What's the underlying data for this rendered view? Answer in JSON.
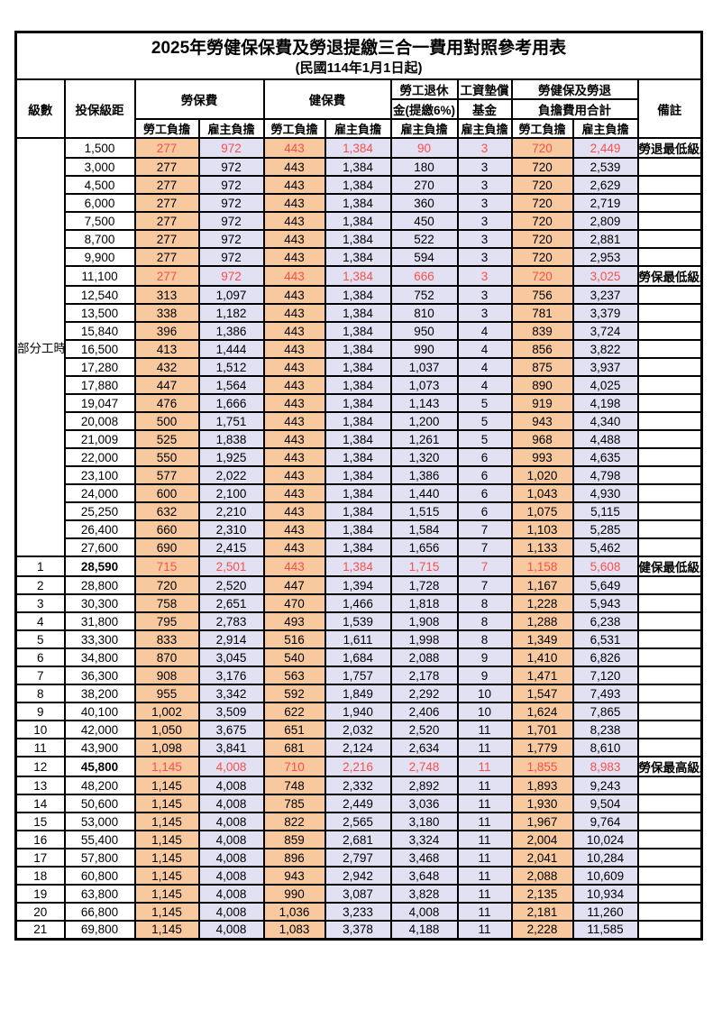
{
  "title": "2025年勞健保保費及勞退提繳三合一費用對照參考用表",
  "subtitle": "(民國114年1月1日起)",
  "colors": {
    "employee_bg": "#F8C99F",
    "employer_bg": "#E2E0F3",
    "highlight_red": "#FF4F4A",
    "border": "#000000"
  },
  "header": {
    "level": "級數",
    "bracket": "投保級距",
    "labor_ins": "勞保費",
    "health_ins": "健保費",
    "pension_line1": "勞工退休",
    "pension_line2": "金(提繳6%)",
    "fund_line1": "工資墊償",
    "fund_line2": "基金",
    "total_line1": "勞健保及勞退",
    "total_line2": "負擔費用合計",
    "note": "備註",
    "employee": "勞工負擔",
    "employer": "雇主負擔"
  },
  "part_time_label": "部分工時",
  "part_time_row_span": 23,
  "rows": [
    {
      "level": "",
      "bracket": "1,500",
      "labor_e": "277",
      "labor_r": "972",
      "health_e": "443",
      "health_r": "1,384",
      "pension": "90",
      "fund": "3",
      "sum_e": "720",
      "sum_r": "2,449",
      "note": "勞退最低級距",
      "red": true,
      "bold": false
    },
    {
      "level": "",
      "bracket": "3,000",
      "labor_e": "277",
      "labor_r": "972",
      "health_e": "443",
      "health_r": "1,384",
      "pension": "180",
      "fund": "3",
      "sum_e": "720",
      "sum_r": "2,539",
      "note": "",
      "red": false,
      "bold": false
    },
    {
      "level": "",
      "bracket": "4,500",
      "labor_e": "277",
      "labor_r": "972",
      "health_e": "443",
      "health_r": "1,384",
      "pension": "270",
      "fund": "3",
      "sum_e": "720",
      "sum_r": "2,629",
      "note": "",
      "red": false,
      "bold": false
    },
    {
      "level": "",
      "bracket": "6,000",
      "labor_e": "277",
      "labor_r": "972",
      "health_e": "443",
      "health_r": "1,384",
      "pension": "360",
      "fund": "3",
      "sum_e": "720",
      "sum_r": "2,719",
      "note": "",
      "red": false,
      "bold": false
    },
    {
      "level": "",
      "bracket": "7,500",
      "labor_e": "277",
      "labor_r": "972",
      "health_e": "443",
      "health_r": "1,384",
      "pension": "450",
      "fund": "3",
      "sum_e": "720",
      "sum_r": "2,809",
      "note": "",
      "red": false,
      "bold": false
    },
    {
      "level": "",
      "bracket": "8,700",
      "labor_e": "277",
      "labor_r": "972",
      "health_e": "443",
      "health_r": "1,384",
      "pension": "522",
      "fund": "3",
      "sum_e": "720",
      "sum_r": "2,881",
      "note": "",
      "red": false,
      "bold": false
    },
    {
      "level": "",
      "bracket": "9,900",
      "labor_e": "277",
      "labor_r": "972",
      "health_e": "443",
      "health_r": "1,384",
      "pension": "594",
      "fund": "3",
      "sum_e": "720",
      "sum_r": "2,953",
      "note": "",
      "red": false,
      "bold": false
    },
    {
      "level": "",
      "bracket": "11,100",
      "labor_e": "277",
      "labor_r": "972",
      "health_e": "443",
      "health_r": "1,384",
      "pension": "666",
      "fund": "3",
      "sum_e": "720",
      "sum_r": "3,025",
      "note": "勞保最低級距",
      "red": true,
      "bold": false
    },
    {
      "level": "",
      "bracket": "12,540",
      "labor_e": "313",
      "labor_r": "1,097",
      "health_e": "443",
      "health_r": "1,384",
      "pension": "752",
      "fund": "3",
      "sum_e": "756",
      "sum_r": "3,237",
      "note": "",
      "red": false,
      "bold": false
    },
    {
      "level": "",
      "bracket": "13,500",
      "labor_e": "338",
      "labor_r": "1,182",
      "health_e": "443",
      "health_r": "1,384",
      "pension": "810",
      "fund": "3",
      "sum_e": "781",
      "sum_r": "3,379",
      "note": "",
      "red": false,
      "bold": false
    },
    {
      "level": "",
      "bracket": "15,840",
      "labor_e": "396",
      "labor_r": "1,386",
      "health_e": "443",
      "health_r": "1,384",
      "pension": "950",
      "fund": "4",
      "sum_e": "839",
      "sum_r": "3,724",
      "note": "",
      "red": false,
      "bold": false
    },
    {
      "level": "",
      "bracket": "16,500",
      "labor_e": "413",
      "labor_r": "1,444",
      "health_e": "443",
      "health_r": "1,384",
      "pension": "990",
      "fund": "4",
      "sum_e": "856",
      "sum_r": "3,822",
      "note": "",
      "red": false,
      "bold": false
    },
    {
      "level": "",
      "bracket": "17,280",
      "labor_e": "432",
      "labor_r": "1,512",
      "health_e": "443",
      "health_r": "1,384",
      "pension": "1,037",
      "fund": "4",
      "sum_e": "875",
      "sum_r": "3,937",
      "note": "",
      "red": false,
      "bold": false
    },
    {
      "level": "",
      "bracket": "17,880",
      "labor_e": "447",
      "labor_r": "1,564",
      "health_e": "443",
      "health_r": "1,384",
      "pension": "1,073",
      "fund": "4",
      "sum_e": "890",
      "sum_r": "4,025",
      "note": "",
      "red": false,
      "bold": false
    },
    {
      "level": "",
      "bracket": "19,047",
      "labor_e": "476",
      "labor_r": "1,666",
      "health_e": "443",
      "health_r": "1,384",
      "pension": "1,143",
      "fund": "5",
      "sum_e": "919",
      "sum_r": "4,198",
      "note": "",
      "red": false,
      "bold": false
    },
    {
      "level": "",
      "bracket": "20,008",
      "labor_e": "500",
      "labor_r": "1,751",
      "health_e": "443",
      "health_r": "1,384",
      "pension": "1,200",
      "fund": "5",
      "sum_e": "943",
      "sum_r": "4,340",
      "note": "",
      "red": false,
      "bold": false
    },
    {
      "level": "",
      "bracket": "21,009",
      "labor_e": "525",
      "labor_r": "1,838",
      "health_e": "443",
      "health_r": "1,384",
      "pension": "1,261",
      "fund": "5",
      "sum_e": "968",
      "sum_r": "4,488",
      "note": "",
      "red": false,
      "bold": false
    },
    {
      "level": "",
      "bracket": "22,000",
      "labor_e": "550",
      "labor_r": "1,925",
      "health_e": "443",
      "health_r": "1,384",
      "pension": "1,320",
      "fund": "6",
      "sum_e": "993",
      "sum_r": "4,635",
      "note": "",
      "red": false,
      "bold": false
    },
    {
      "level": "",
      "bracket": "23,100",
      "labor_e": "577",
      "labor_r": "2,022",
      "health_e": "443",
      "health_r": "1,384",
      "pension": "1,386",
      "fund": "6",
      "sum_e": "1,020",
      "sum_r": "4,798",
      "note": "",
      "red": false,
      "bold": false
    },
    {
      "level": "",
      "bracket": "24,000",
      "labor_e": "600",
      "labor_r": "2,100",
      "health_e": "443",
      "health_r": "1,384",
      "pension": "1,440",
      "fund": "6",
      "sum_e": "1,043",
      "sum_r": "4,930",
      "note": "",
      "red": false,
      "bold": false
    },
    {
      "level": "",
      "bracket": "25,250",
      "labor_e": "632",
      "labor_r": "2,210",
      "health_e": "443",
      "health_r": "1,384",
      "pension": "1,515",
      "fund": "6",
      "sum_e": "1,075",
      "sum_r": "5,115",
      "note": "",
      "red": false,
      "bold": false
    },
    {
      "level": "",
      "bracket": "26,400",
      "labor_e": "660",
      "labor_r": "2,310",
      "health_e": "443",
      "health_r": "1,384",
      "pension": "1,584",
      "fund": "7",
      "sum_e": "1,103",
      "sum_r": "5,285",
      "note": "",
      "red": false,
      "bold": false
    },
    {
      "level": "",
      "bracket": "27,600",
      "labor_e": "690",
      "labor_r": "2,415",
      "health_e": "443",
      "health_r": "1,384",
      "pension": "1,656",
      "fund": "7",
      "sum_e": "1,133",
      "sum_r": "5,462",
      "note": "",
      "red": false,
      "bold": false
    },
    {
      "level": "1",
      "bracket": "28,590",
      "labor_e": "715",
      "labor_r": "2,501",
      "health_e": "443",
      "health_r": "1,384",
      "pension": "1,715",
      "fund": "7",
      "sum_e": "1,158",
      "sum_r": "5,608",
      "note": "健保最低級距",
      "red": true,
      "bold": true
    },
    {
      "level": "2",
      "bracket": "28,800",
      "labor_e": "720",
      "labor_r": "2,520",
      "health_e": "447",
      "health_r": "1,394",
      "pension": "1,728",
      "fund": "7",
      "sum_e": "1,167",
      "sum_r": "5,649",
      "note": "",
      "red": false,
      "bold": false
    },
    {
      "level": "3",
      "bracket": "30,300",
      "labor_e": "758",
      "labor_r": "2,651",
      "health_e": "470",
      "health_r": "1,466",
      "pension": "1,818",
      "fund": "8",
      "sum_e": "1,228",
      "sum_r": "5,943",
      "note": "",
      "red": false,
      "bold": false
    },
    {
      "level": "4",
      "bracket": "31,800",
      "labor_e": "795",
      "labor_r": "2,783",
      "health_e": "493",
      "health_r": "1,539",
      "pension": "1,908",
      "fund": "8",
      "sum_e": "1,288",
      "sum_r": "6,238",
      "note": "",
      "red": false,
      "bold": false
    },
    {
      "level": "5",
      "bracket": "33,300",
      "labor_e": "833",
      "labor_r": "2,914",
      "health_e": "516",
      "health_r": "1,611",
      "pension": "1,998",
      "fund": "8",
      "sum_e": "1,349",
      "sum_r": "6,531",
      "note": "",
      "red": false,
      "bold": false
    },
    {
      "level": "6",
      "bracket": "34,800",
      "labor_e": "870",
      "labor_r": "3,045",
      "health_e": "540",
      "health_r": "1,684",
      "pension": "2,088",
      "fund": "9",
      "sum_e": "1,410",
      "sum_r": "6,826",
      "note": "",
      "red": false,
      "bold": false
    },
    {
      "level": "7",
      "bracket": "36,300",
      "labor_e": "908",
      "labor_r": "3,176",
      "health_e": "563",
      "health_r": "1,757",
      "pension": "2,178",
      "fund": "9",
      "sum_e": "1,471",
      "sum_r": "7,120",
      "note": "",
      "red": false,
      "bold": false
    },
    {
      "level": "8",
      "bracket": "38,200",
      "labor_e": "955",
      "labor_r": "3,342",
      "health_e": "592",
      "health_r": "1,849",
      "pension": "2,292",
      "fund": "10",
      "sum_e": "1,547",
      "sum_r": "7,493",
      "note": "",
      "red": false,
      "bold": false
    },
    {
      "level": "9",
      "bracket": "40,100",
      "labor_e": "1,002",
      "labor_r": "3,509",
      "health_e": "622",
      "health_r": "1,940",
      "pension": "2,406",
      "fund": "10",
      "sum_e": "1,624",
      "sum_r": "7,865",
      "note": "",
      "red": false,
      "bold": false
    },
    {
      "level": "10",
      "bracket": "42,000",
      "labor_e": "1,050",
      "labor_r": "3,675",
      "health_e": "651",
      "health_r": "2,032",
      "pension": "2,520",
      "fund": "11",
      "sum_e": "1,701",
      "sum_r": "8,238",
      "note": "",
      "red": false,
      "bold": false
    },
    {
      "level": "11",
      "bracket": "43,900",
      "labor_e": "1,098",
      "labor_r": "3,841",
      "health_e": "681",
      "health_r": "2,124",
      "pension": "2,634",
      "fund": "11",
      "sum_e": "1,779",
      "sum_r": "8,610",
      "note": "",
      "red": false,
      "bold": false
    },
    {
      "level": "12",
      "bracket": "45,800",
      "labor_e": "1,145",
      "labor_r": "4,008",
      "health_e": "710",
      "health_r": "2,216",
      "pension": "2,748",
      "fund": "11",
      "sum_e": "1,855",
      "sum_r": "8,983",
      "note": "勞保最高級距",
      "red": true,
      "bold": true
    },
    {
      "level": "13",
      "bracket": "48,200",
      "labor_e": "1,145",
      "labor_r": "4,008",
      "health_e": "748",
      "health_r": "2,332",
      "pension": "2,892",
      "fund": "11",
      "sum_e": "1,893",
      "sum_r": "9,243",
      "note": "",
      "red": false,
      "bold": false
    },
    {
      "level": "14",
      "bracket": "50,600",
      "labor_e": "1,145",
      "labor_r": "4,008",
      "health_e": "785",
      "health_r": "2,449",
      "pension": "3,036",
      "fund": "11",
      "sum_e": "1,930",
      "sum_r": "9,504",
      "note": "",
      "red": false,
      "bold": false
    },
    {
      "level": "15",
      "bracket": "53,000",
      "labor_e": "1,145",
      "labor_r": "4,008",
      "health_e": "822",
      "health_r": "2,565",
      "pension": "3,180",
      "fund": "11",
      "sum_e": "1,967",
      "sum_r": "9,764",
      "note": "",
      "red": false,
      "bold": false
    },
    {
      "level": "16",
      "bracket": "55,400",
      "labor_e": "1,145",
      "labor_r": "4,008",
      "health_e": "859",
      "health_r": "2,681",
      "pension": "3,324",
      "fund": "11",
      "sum_e": "2,004",
      "sum_r": "10,024",
      "note": "",
      "red": false,
      "bold": false
    },
    {
      "level": "17",
      "bracket": "57,800",
      "labor_e": "1,145",
      "labor_r": "4,008",
      "health_e": "896",
      "health_r": "2,797",
      "pension": "3,468",
      "fund": "11",
      "sum_e": "2,041",
      "sum_r": "10,284",
      "note": "",
      "red": false,
      "bold": false
    },
    {
      "level": "18",
      "bracket": "60,800",
      "labor_e": "1,145",
      "labor_r": "4,008",
      "health_e": "943",
      "health_r": "2,942",
      "pension": "3,648",
      "fund": "11",
      "sum_e": "2,088",
      "sum_r": "10,609",
      "note": "",
      "red": false,
      "bold": false
    },
    {
      "level": "19",
      "bracket": "63,800",
      "labor_e": "1,145",
      "labor_r": "4,008",
      "health_e": "990",
      "health_r": "3,087",
      "pension": "3,828",
      "fund": "11",
      "sum_e": "2,135",
      "sum_r": "10,934",
      "note": "",
      "red": false,
      "bold": false
    },
    {
      "level": "20",
      "bracket": "66,800",
      "labor_e": "1,145",
      "labor_r": "4,008",
      "health_e": "1,036",
      "health_r": "3,233",
      "pension": "4,008",
      "fund": "11",
      "sum_e": "2,181",
      "sum_r": "11,260",
      "note": "",
      "red": false,
      "bold": false
    },
    {
      "level": "21",
      "bracket": "69,800",
      "labor_e": "1,145",
      "labor_r": "4,008",
      "health_e": "1,083",
      "health_r": "3,378",
      "pension": "4,188",
      "fund": "11",
      "sum_e": "2,228",
      "sum_r": "11,585",
      "note": "",
      "red": false,
      "bold": false
    }
  ]
}
